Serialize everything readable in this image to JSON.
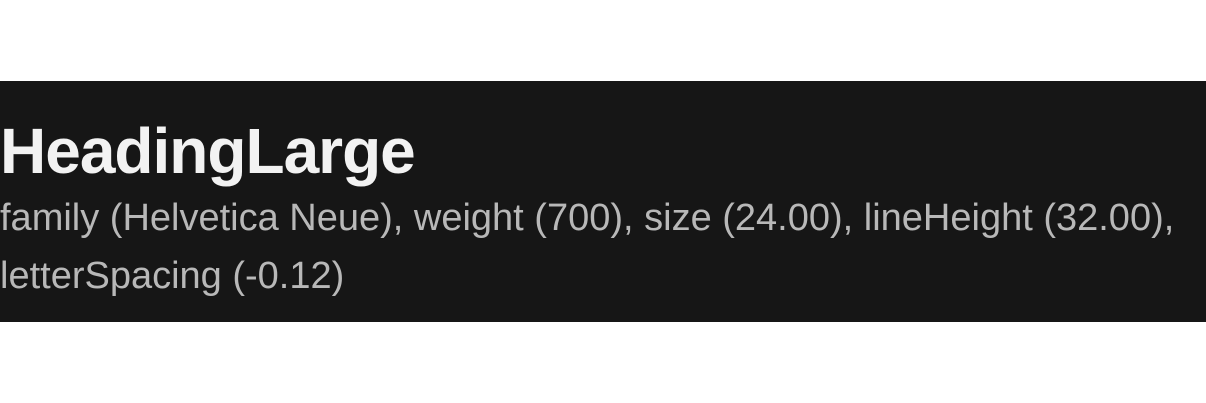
{
  "card": {
    "title": "HeadingLarge",
    "spec": "family (Helvetica Neue), weight (700), size (24.00), lineHeight (32.00), letterSpacing (-0.12)"
  },
  "colors": {
    "page_background": "#ffffff",
    "card_background": "#161616",
    "title_text": "#f2f2f2",
    "spec_text": "#b8b8b8"
  }
}
